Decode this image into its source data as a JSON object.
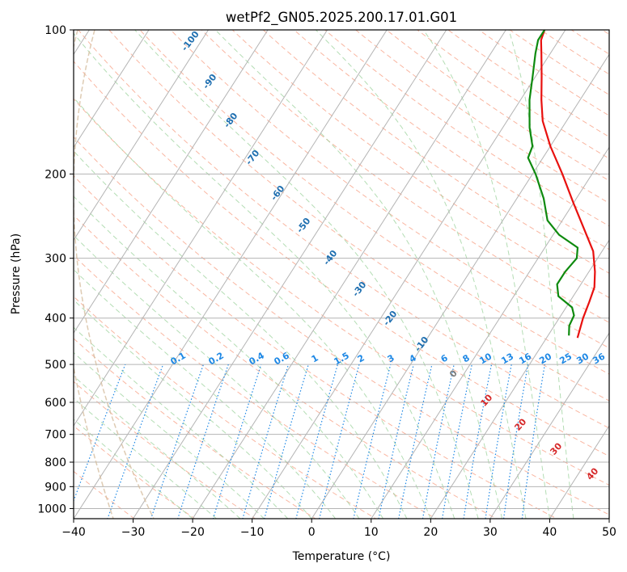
{
  "chart_data": {
    "type": "line",
    "title": "wetPf2_GN05.2025.200.17.01.G01",
    "xlabel": "Temperature (°C)",
    "ylabel": "Pressure (hPa)",
    "xlim": [
      -40,
      50
    ],
    "ylim": [
      1050,
      100
    ],
    "y_scale": "log",
    "grid": true,
    "x_ticks": [
      -40,
      -30,
      -20,
      -10,
      0,
      10,
      20,
      30,
      40,
      50
    ],
    "y_ticks": [
      100,
      200,
      300,
      400,
      500,
      600,
      700,
      800,
      900,
      1000
    ],
    "series": [
      {
        "color": "#e8110f",
        "points": [
          {
            "p": 440,
            "t": 25.2
          },
          {
            "p": 400,
            "t": 24.0
          },
          {
            "p": 370,
            "t": 23.3
          },
          {
            "p": 345,
            "t": 22.6
          },
          {
            "p": 320,
            "t": 21.0
          },
          {
            "p": 290,
            "t": 18.5
          },
          {
            "p": 260,
            "t": 14.5
          },
          {
            "p": 230,
            "t": 10.0
          },
          {
            "p": 200,
            "t": 5.0
          },
          {
            "p": 175,
            "t": 0.0
          },
          {
            "p": 155,
            "t": -4.0
          },
          {
            "p": 140,
            "t": -6.5
          },
          {
            "p": 125,
            "t": -9.0
          },
          {
            "p": 112,
            "t": -11.5
          },
          {
            "p": 105,
            "t": -13.0
          },
          {
            "p": 100,
            "t": -13.5
          }
        ]
      },
      {
        "color": "#0e8a0e",
        "points": [
          {
            "p": 435,
            "t": 23.5
          },
          {
            "p": 415,
            "t": 22.5
          },
          {
            "p": 395,
            "t": 22.2
          },
          {
            "p": 380,
            "t": 21.0
          },
          {
            "p": 360,
            "t": 17.5
          },
          {
            "p": 340,
            "t": 16.0
          },
          {
            "p": 320,
            "t": 16.0
          },
          {
            "p": 300,
            "t": 16.5
          },
          {
            "p": 285,
            "t": 15.5
          },
          {
            "p": 268,
            "t": 11.0
          },
          {
            "p": 250,
            "t": 7.5
          },
          {
            "p": 225,
            "t": 4.5
          },
          {
            "p": 200,
            "t": 0.5
          },
          {
            "p": 185,
            "t": -2.5
          },
          {
            "p": 175,
            "t": -3.0
          },
          {
            "p": 160,
            "t": -5.5
          },
          {
            "p": 140,
            "t": -8.5
          },
          {
            "p": 125,
            "t": -10.5
          },
          {
            "p": 112,
            "t": -12.5
          },
          {
            "p": 105,
            "t": -13.5
          },
          {
            "p": 100,
            "t": -13.5
          }
        ]
      }
    ],
    "mixing_ratio_labels": [
      "0.1",
      "0.2",
      "0.4",
      "0.6",
      "1",
      "1.5",
      "2",
      "3",
      "4",
      "6",
      "8",
      "10",
      "13",
      "16",
      "20",
      "25",
      "30",
      "36"
    ],
    "mixing_ratio_values": [
      0.1,
      0.2,
      0.4,
      0.6,
      1,
      1.5,
      2,
      3,
      4,
      6,
      8,
      10,
      13,
      16,
      20,
      25,
      30,
      36
    ],
    "mixing_ratio_color": "#1e88e5",
    "dry_adiabat_labels": [
      "-100",
      "-90",
      "-80",
      "-70",
      "-60",
      "-50",
      "-40",
      "-30",
      "-20",
      "-10"
    ],
    "dry_adiabat_label_color": "#1f6fb0",
    "moist_adiabat_labels": [
      "0",
      "10",
      "20",
      "30",
      "40"
    ],
    "moist_adiabat_label_colors": [
      "#7a7a7a",
      "#d62728",
      "#d62728",
      "#d62728",
      "#d62728"
    ],
    "colors": {
      "isotherm": "#b4b4b4",
      "isobar": "#b4b4b4",
      "dry_adiabat": "#f7a48a",
      "moist_adiabat": "#9bd19b",
      "mixing_ratio": "#1e88e5",
      "arc": "#d6bea0"
    }
  }
}
